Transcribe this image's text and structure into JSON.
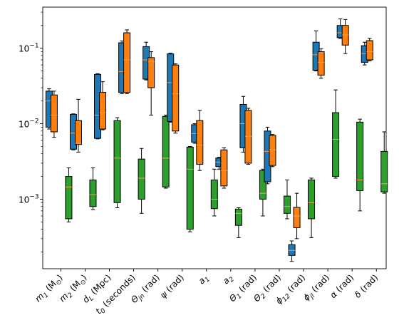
{
  "chart_data": {
    "type": "box",
    "y_scale": "log",
    "ylim": [
      0.00012,
      0.35
    ],
    "y_ticks": [
      {
        "value": 0.001,
        "label": "10",
        "exp": "−3"
      },
      {
        "value": 0.01,
        "label": "10",
        "exp": "−2"
      },
      {
        "value": 0.1,
        "label": "10",
        "exp": "−1"
      }
    ],
    "categories": [
      {
        "base": "m",
        "sub": "1",
        "tail": " (M",
        "tailsub": "⊙",
        "end": ")"
      },
      {
        "base": "m",
        "sub": "2",
        "tail": " (M",
        "tailsub": "⊙",
        "end": ")"
      },
      {
        "base": "d",
        "sub": "L",
        "tail": " (Mpc)",
        "tailsub": "",
        "end": ""
      },
      {
        "base": "t",
        "sub": "0",
        "tail": " (seconds)",
        "tailsub": "",
        "end": ""
      },
      {
        "base": "Θ",
        "sub": "jn",
        "tail": " (rad)",
        "tailsub": "",
        "end": ""
      },
      {
        "base": "ψ",
        "sub": "",
        "tail": " (rad)",
        "tailsub": "",
        "end": ""
      },
      {
        "base": "a",
        "sub": "1",
        "tail": "",
        "tailsub": "",
        "end": ""
      },
      {
        "base": "a",
        "sub": "2",
        "tail": "",
        "tailsub": "",
        "end": ""
      },
      {
        "base": "Θ",
        "sub": "1",
        "tail": " (rad)",
        "tailsub": "",
        "end": ""
      },
      {
        "base": "Θ",
        "sub": "2",
        "tail": " (rad)",
        "tailsub": "",
        "end": ""
      },
      {
        "base": "ϕ",
        "sub": "12",
        "tail": " (rad)",
        "tailsub": "",
        "end": ""
      },
      {
        "base": "ϕ",
        "sub": "jl",
        "tail": " (rad)",
        "tailsub": "",
        "end": ""
      },
      {
        "base": "α",
        "sub": "",
        "tail": " (rad)",
        "tailsub": "",
        "end": ""
      },
      {
        "base": "δ",
        "sub": "",
        "tail": " (rad)",
        "tailsub": "",
        "end": ""
      }
    ],
    "series": [
      {
        "color": "#1f77b4",
        "boxes": [
          {
            "lo": 0.0085,
            "q1": 0.009,
            "med": 0.02,
            "q3": 0.027,
            "hi": 0.029
          },
          {
            "lo": 0.0045,
            "q1": 0.0046,
            "med": 0.0075,
            "q3": 0.0133,
            "hi": 0.0135
          },
          {
            "lo": 0.0063,
            "q1": 0.0064,
            "med": 0.013,
            "q3": 0.045,
            "hi": 0.046
          },
          {
            "lo": 0.025,
            "q1": 0.026,
            "med": 0.049,
            "q3": 0.118,
            "hi": 0.125
          },
          {
            "lo": 0.038,
            "q1": 0.039,
            "med": 0.07,
            "q3": 0.105,
            "hi": 0.12
          },
          {
            "lo": 0.0105,
            "q1": 0.0107,
            "med": 0.035,
            "q3": 0.084,
            "hi": 0.086
          },
          {
            "lo": 0.0055,
            "q1": 0.0057,
            "med": 0.0074,
            "q3": 0.0097,
            "hi": 0.01
          },
          {
            "lo": 0.0025,
            "q1": 0.0027,
            "med": 0.0031,
            "q3": 0.0035,
            "hi": 0.0036
          },
          {
            "lo": 0.0042,
            "q1": 0.0048,
            "med": 0.01,
            "q3": 0.018,
            "hi": 0.023
          },
          {
            "lo": 0.0016,
            "q1": 0.0017,
            "med": 0.0043,
            "q3": 0.008,
            "hi": 0.009
          },
          {
            "lo": 0.00015,
            "q1": 0.00018,
            "med": 0.00021,
            "q3": 0.00025,
            "hi": 0.00028
          },
          {
            "lo": 0.05,
            "q1": 0.051,
            "med": 0.082,
            "q3": 0.12,
            "hi": 0.17
          },
          {
            "lo": 0.135,
            "q1": 0.138,
            "med": 0.16,
            "q3": 0.2,
            "hi": 0.245
          },
          {
            "lo": 0.06,
            "q1": 0.065,
            "med": 0.085,
            "q3": 0.108,
            "hi": 0.12
          }
        ]
      },
      {
        "color": "#ff7f0e",
        "boxes": [
          {
            "lo": 0.0066,
            "q1": 0.0078,
            "med": 0.013,
            "q3": 0.024,
            "hi": 0.027
          },
          {
            "lo": 0.0042,
            "q1": 0.0053,
            "med": 0.0055,
            "q3": 0.011,
            "hi": 0.021
          },
          {
            "lo": 0.0083,
            "q1": 0.0085,
            "med": 0.014,
            "q3": 0.026,
            "hi": 0.036
          },
          {
            "lo": 0.025,
            "q1": 0.026,
            "med": 0.07,
            "q3": 0.16,
            "hi": 0.175
          },
          {
            "lo": 0.013,
            "q1": 0.03,
            "med": 0.066,
            "q3": 0.075,
            "hi": 0.09
          },
          {
            "lo": 0.0075,
            "q1": 0.008,
            "med": 0.025,
            "q3": 0.06,
            "hi": 0.062
          },
          {
            "lo": 0.0024,
            "q1": 0.0029,
            "med": 0.0052,
            "q3": 0.011,
            "hi": 0.015
          },
          {
            "lo": 0.0014,
            "q1": 0.0015,
            "med": 0.0024,
            "q3": 0.0045,
            "hi": 0.0048
          },
          {
            "lo": 0.0029,
            "q1": 0.003,
            "med": 0.0068,
            "q3": 0.015,
            "hi": 0.016
          },
          {
            "lo": 0.0027,
            "q1": 0.0028,
            "med": 0.0045,
            "q3": 0.007,
            "hi": 0.0072
          },
          {
            "lo": 0.0003,
            "q1": 0.00042,
            "med": 0.0006,
            "q3": 0.00078,
            "hi": 0.0012
          },
          {
            "lo": 0.04,
            "q1": 0.044,
            "med": 0.065,
            "q3": 0.09,
            "hi": 0.098
          },
          {
            "lo": 0.085,
            "q1": 0.11,
            "med": 0.15,
            "q3": 0.2,
            "hi": 0.24
          },
          {
            "lo": 0.068,
            "q1": 0.07,
            "med": 0.09,
            "q3": 0.126,
            "hi": 0.135
          }
        ]
      },
      {
        "color": "#2ca02c",
        "boxes": [
          {
            "lo": 0.0005,
            "q1": 0.00055,
            "med": 0.00145,
            "q3": 0.002,
            "hi": 0.0026
          },
          {
            "lo": 0.00073,
            "q1": 0.0008,
            "med": 0.00115,
            "q3": 0.0018,
            "hi": 0.0026
          },
          {
            "lo": 0.00077,
            "q1": 0.0009,
            "med": 0.0035,
            "q3": 0.011,
            "hi": 0.012
          },
          {
            "lo": 0.00065,
            "q1": 0.001,
            "med": 0.0019,
            "q3": 0.0034,
            "hi": 0.0047
          },
          {
            "lo": 0.0014,
            "q1": 0.00145,
            "med": 0.0035,
            "q3": 0.0125,
            "hi": 0.013
          },
          {
            "lo": 0.00037,
            "q1": 0.0004,
            "med": 0.0025,
            "q3": 0.0049,
            "hi": 0.005
          },
          {
            "lo": 0.0006,
            "q1": 0.00075,
            "med": 0.001,
            "q3": 0.0018,
            "hi": 0.0025
          },
          {
            "lo": 0.00031,
            "q1": 0.00045,
            "med": 0.00065,
            "q3": 0.00074,
            "hi": 0.00077
          },
          {
            "lo": 0.0006,
            "q1": 0.001,
            "med": 0.0012,
            "q3": 0.0024,
            "hi": 0.0025
          },
          {
            "lo": 0.00055,
            "q1": 0.00065,
            "med": 0.0008,
            "q3": 0.0011,
            "hi": 0.0018
          },
          {
            "lo": 0.00031,
            "q1": 0.00055,
            "med": 0.0009,
            "q3": 0.0018,
            "hi": 0.0019
          },
          {
            "lo": 0.0019,
            "q1": 0.002,
            "med": 0.0062,
            "q3": 0.014,
            "hi": 0.028
          },
          {
            "lo": 0.0007,
            "q1": 0.0013,
            "med": 0.0018,
            "q3": 0.0105,
            "hi": 0.0115
          },
          {
            "lo": 0.0012,
            "q1": 0.00125,
            "med": 0.0016,
            "q3": 0.0043,
            "hi": 0.0078
          }
        ]
      }
    ]
  }
}
